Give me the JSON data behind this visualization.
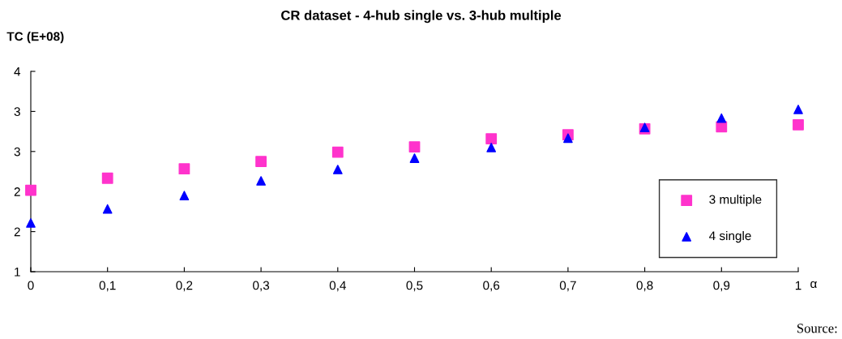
{
  "chart_data": {
    "type": "scatter",
    "title": "CR dataset - 4-hub single vs. 3-hub multiple",
    "ylabel": "TC (E+08)",
    "xlabel": "α",
    "x": [
      0,
      0.1,
      0.2,
      0.3,
      0.4,
      0.5,
      0.6,
      0.7,
      0.8,
      0.9,
      1
    ],
    "series": [
      {
        "name": "3 multiple",
        "color": "#ff33cc",
        "marker": "square",
        "values": [
          2.22,
          2.4,
          2.54,
          2.65,
          2.79,
          2.87,
          2.99,
          3.05,
          3.14,
          3.17,
          3.2
        ]
      },
      {
        "name": "4 single",
        "color": "#0000ff",
        "marker": "triangle",
        "values": [
          1.73,
          1.94,
          2.14,
          2.36,
          2.53,
          2.7,
          2.86,
          3.0,
          3.16,
          3.3,
          3.43
        ]
      }
    ],
    "xlim": [
      0,
      1
    ],
    "xticks": [
      0,
      {
        "value": 0.1,
        "label": "0,1"
      },
      {
        "value": 0.2,
        "label": "0,2"
      },
      {
        "value": 0.3,
        "label": "0,3"
      },
      {
        "value": 0.4,
        "label": "0,4"
      },
      {
        "value": 0.5,
        "label": "0,5"
      },
      {
        "value": 0.6,
        "label": "0,6"
      },
      {
        "value": 0.7,
        "label": "0,7"
      },
      {
        "value": 0.8,
        "label": "0,8"
      },
      {
        "value": 0.9,
        "label": "0,9"
      },
      1
    ],
    "ylim": [
      1,
      4
    ],
    "yticks": [
      1,
      {
        "value": 1.6,
        "label": "2"
      },
      {
        "value": 2.2,
        "label": "2"
      },
      {
        "value": 2.8,
        "label": "3"
      },
      {
        "value": 3.4,
        "label": "3"
      },
      4
    ],
    "grid": false,
    "legend": "bottom right",
    "annotations": [
      "Source:"
    ]
  }
}
